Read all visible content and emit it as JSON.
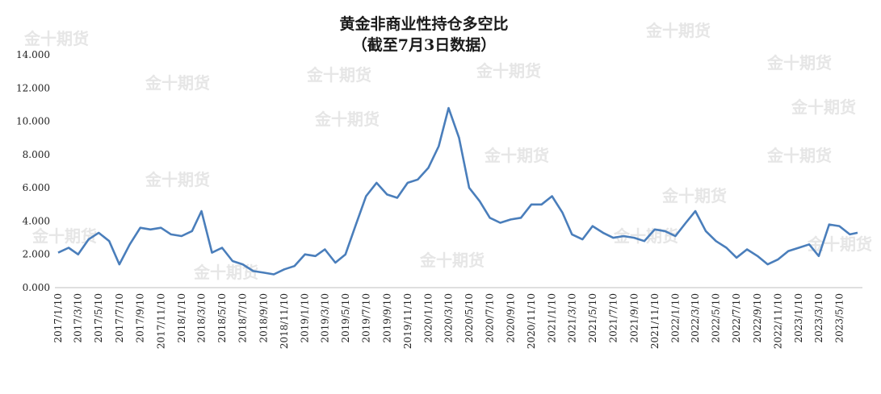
{
  "chart_data": {
    "type": "line",
    "title": "黄金非商业性持仓多空比",
    "subtitle": "（截至7月3日数据）",
    "xlabel": "",
    "ylabel": "",
    "ylim": [
      0,
      14
    ],
    "y_ticks": [
      "0.000",
      "2.000",
      "4.000",
      "6.000",
      "8.000",
      "10.000",
      "12.000",
      "14.000"
    ],
    "x_ticks": [
      "2017/1/10",
      "2017/3/10",
      "2017/5/10",
      "2017/7/10",
      "2017/9/10",
      "2017/11/10",
      "2018/1/10",
      "2018/3/10",
      "2018/5/10",
      "2018/7/10",
      "2018/9/10",
      "2018/11/10",
      "2019/1/10",
      "2019/3/10",
      "2019/5/10",
      "2019/7/10",
      "2019/9/10",
      "2019/11/10",
      "2020/1/10",
      "2020/3/10",
      "2020/5/10",
      "2020/7/10",
      "2020/9/10",
      "2020/11/10",
      "2021/1/10",
      "2021/3/10",
      "2021/5/10",
      "2021/7/10",
      "2021/9/10",
      "2021/11/10",
      "2022/1/10",
      "2022/3/10",
      "2022/5/10",
      "2022/7/10",
      "2022/9/10",
      "2022/11/10",
      "2023/1/10",
      "2023/3/10",
      "2023/5/10"
    ],
    "grid": false,
    "legend": "none",
    "line_color": "#4a7ebb",
    "watermark": "金十期货",
    "series": [
      {
        "name": "",
        "x": [
          "2017/1/10",
          "2017/2/10",
          "2017/3/10",
          "2017/4/10",
          "2017/5/10",
          "2017/6/10",
          "2017/7/10",
          "2017/8/10",
          "2017/9/10",
          "2017/10/10",
          "2017/11/10",
          "2017/12/10",
          "2018/1/10",
          "2018/2/10",
          "2018/3/10",
          "2018/4/10",
          "2018/5/10",
          "2018/6/10",
          "2018/7/10",
          "2018/8/10",
          "2018/9/10",
          "2018/10/10",
          "2018/11/10",
          "2018/12/10",
          "2019/1/10",
          "2019/2/10",
          "2019/3/10",
          "2019/4/10",
          "2019/5/10",
          "2019/6/10",
          "2019/7/10",
          "2019/8/10",
          "2019/9/10",
          "2019/10/10",
          "2019/11/10",
          "2019/12/10",
          "2020/1/10",
          "2020/2/10",
          "2020/3/10",
          "2020/4/10",
          "2020/5/10",
          "2020/6/10",
          "2020/7/10",
          "2020/8/10",
          "2020/9/10",
          "2020/10/10",
          "2020/11/10",
          "2020/12/10",
          "2021/1/10",
          "2021/2/10",
          "2021/3/10",
          "2021/4/10",
          "2021/5/10",
          "2021/6/10",
          "2021/7/10",
          "2021/8/10",
          "2021/9/10",
          "2021/10/10",
          "2021/11/10",
          "2021/12/10",
          "2022/1/10",
          "2022/2/10",
          "2022/3/10",
          "2022/4/10",
          "2022/5/10",
          "2022/6/10",
          "2022/7/10",
          "2022/8/10",
          "2022/9/10",
          "2022/10/10",
          "2022/11/10",
          "2022/12/10",
          "2023/1/10",
          "2023/2/10",
          "2023/3/10",
          "2023/4/10",
          "2023/5/10",
          "2023/6/10",
          "2023/7/3"
        ],
        "values": [
          2.1,
          2.4,
          2.0,
          2.9,
          3.3,
          2.8,
          1.4,
          2.6,
          3.6,
          3.5,
          3.6,
          3.2,
          3.1,
          3.4,
          4.6,
          2.1,
          2.4,
          1.6,
          1.4,
          1.0,
          0.9,
          0.8,
          1.1,
          1.3,
          2.0,
          1.9,
          2.3,
          1.5,
          2.0,
          3.8,
          5.5,
          6.3,
          5.6,
          5.4,
          6.3,
          6.5,
          7.2,
          8.5,
          10.8,
          9.0,
          6.0,
          5.2,
          4.2,
          3.9,
          4.1,
          4.2,
          5.0,
          5.0,
          5.5,
          4.5,
          3.2,
          2.9,
          3.7,
          3.3,
          3.0,
          3.1,
          3.0,
          2.8,
          3.5,
          3.4,
          3.1,
          3.9,
          4.6,
          3.4,
          2.8,
          2.4,
          1.8,
          2.3,
          1.9,
          1.4,
          1.7,
          2.2,
          2.4,
          2.6,
          1.9,
          3.8,
          3.7,
          3.2,
          3.3
        ]
      }
    ]
  }
}
